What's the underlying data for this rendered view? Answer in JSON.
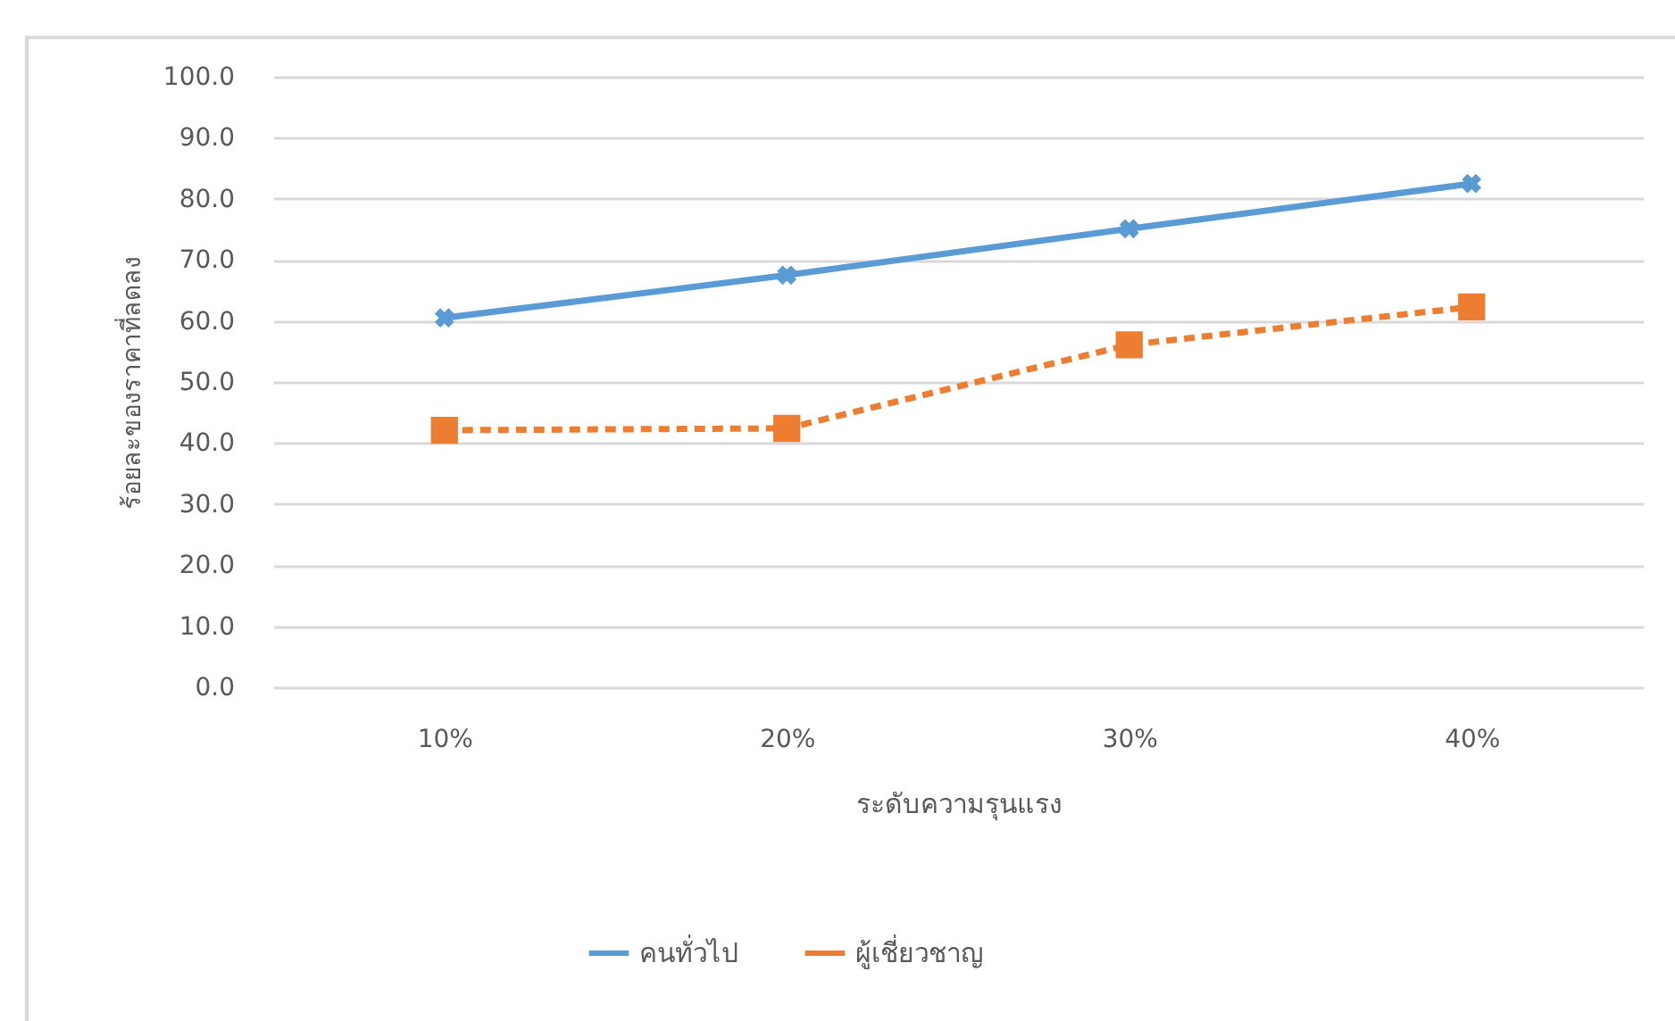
{
  "chart_data": {
    "type": "line",
    "xlabel": "ระดับความรุนแรง",
    "ylabel": "ร้อยละของราคาที่ลดลง",
    "categories": [
      "10%",
      "20%",
      "30%",
      "40%"
    ],
    "series": [
      {
        "name": "คนทั่วไป",
        "color": "#5b9bd5",
        "values": [
          60.5,
          67.5,
          75.1,
          82.5
        ],
        "marker": "cross",
        "line_style": "solid"
      },
      {
        "name": "ผู้เชี่ยวชาญ",
        "color": "#ed7d31",
        "values": [
          42.1,
          42.4,
          56.1,
          62.3
        ],
        "marker": "square",
        "line_style": "dashed"
      }
    ],
    "ylim": [
      0,
      100
    ],
    "yticks": [
      {
        "value": 0,
        "label": "0.0"
      },
      {
        "value": 10,
        "label": "10.0"
      },
      {
        "value": 20,
        "label": "20.0"
      },
      {
        "value": 30,
        "label": "30.0"
      },
      {
        "value": 40,
        "label": "40.0"
      },
      {
        "value": 50,
        "label": "50.0"
      },
      {
        "value": 60,
        "label": "60.0"
      },
      {
        "value": 70,
        "label": "70.0"
      },
      {
        "value": 80,
        "label": "80.0"
      },
      {
        "value": 90,
        "label": "90.0"
      },
      {
        "value": 100,
        "label": "100.0"
      }
    ],
    "grid": "y",
    "legend": "bottom"
  }
}
